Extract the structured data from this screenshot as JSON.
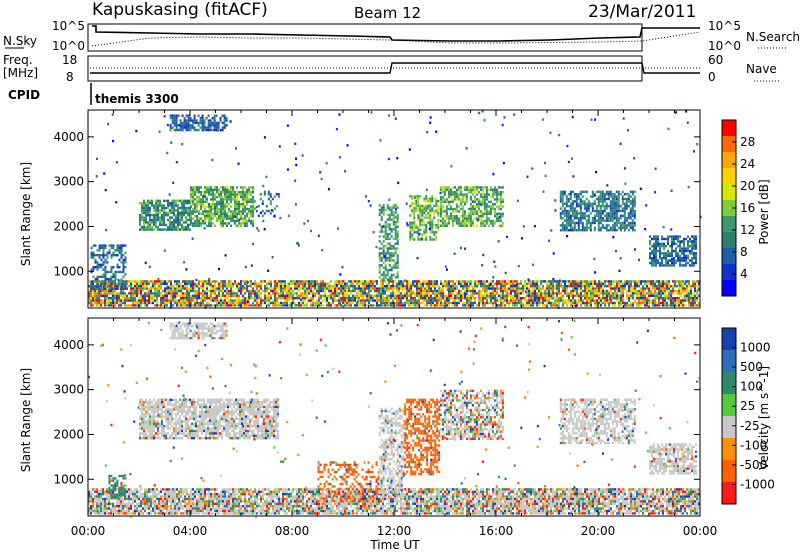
{
  "header": {
    "title": "Kapuskasing (fitACF)",
    "beam": "Beam 12",
    "date": "23/Mar/2011",
    "cpid_label": "CPID",
    "cpid_value": "themis 3300"
  },
  "panels": {
    "nsky": {
      "label": "N.Sky",
      "ticks": [
        "10^5",
        "10^0"
      ]
    },
    "nsearch": {
      "label": "N.Search",
      "ticks": [
        "10^5",
        "10^0"
      ]
    },
    "freq": {
      "label_line1": "Freq.",
      "label_line2": "[MHz]",
      "ticks": [
        "18",
        "8"
      ]
    },
    "nave": {
      "label": "Nave",
      "ticks": [
        "60",
        "0"
      ]
    }
  },
  "colorbars": {
    "power": {
      "label": "Power [dB]",
      "ticks": [
        "28",
        "24",
        "20",
        "16",
        "12",
        "8",
        "4"
      ],
      "colors": [
        "#ff0000",
        "#ff6a00",
        "#ffa500",
        "#ffd000",
        "#d8e800",
        "#7fcc3a",
        "#3a9a6e",
        "#2d7f70",
        "#1a5fa8",
        "#1030d0",
        "#0000ff"
      ]
    },
    "velocity": {
      "label": "Velocity [m s^-1]",
      "ticks": [
        "1000",
        "500",
        "100",
        "25",
        "-25",
        "-100",
        "-500",
        "-1000"
      ],
      "colors": [
        "#1a3fb0",
        "#2a6fb8",
        "#2e8a6e",
        "#58c840",
        "#c8c8c8",
        "#ff9000",
        "#ff6000",
        "#ff1a1a"
      ]
    }
  },
  "chart_data": [
    {
      "type": "heatmap",
      "name": "power",
      "ylabel": "Slant Range [km]",
      "x_ticks": [
        "00:00",
        "04:00",
        "08:00",
        "12:00",
        "16:00",
        "20:00",
        "00:00"
      ],
      "xlim": [
        0,
        24
      ],
      "y_ticks": [
        1000,
        2000,
        3000,
        4000
      ],
      "ylim": [
        180,
        4600
      ],
      "scale_label": "Power [dB]",
      "zlim": [
        0,
        30
      ],
      "regions": [
        {
          "t0": 0.0,
          "t1": 24.0,
          "r0": 200,
          "r1": 800,
          "density": 0.85,
          "z": 10
        },
        {
          "t0": 0.1,
          "t1": 1.5,
          "r0": 600,
          "r1": 1600,
          "density": 0.55,
          "z": 6
        },
        {
          "t0": 2.0,
          "t1": 4.0,
          "r0": 1900,
          "r1": 2600,
          "density": 0.75,
          "z": 9
        },
        {
          "t0": 4.0,
          "t1": 6.5,
          "r0": 2000,
          "r1": 2900,
          "density": 0.8,
          "z": 11
        },
        {
          "t0": 3.2,
          "t1": 5.5,
          "r0": 4150,
          "r1": 4500,
          "density": 0.7,
          "z": 5
        },
        {
          "t0": 6.5,
          "t1": 7.5,
          "r0": 2200,
          "r1": 2800,
          "density": 0.25,
          "z": 7
        },
        {
          "t0": 11.4,
          "t1": 12.2,
          "r0": 800,
          "r1": 2500,
          "density": 0.6,
          "z": 10
        },
        {
          "t0": 12.6,
          "t1": 13.8,
          "r0": 1700,
          "r1": 2700,
          "density": 0.65,
          "z": 12
        },
        {
          "t0": 13.8,
          "t1": 16.3,
          "r0": 2000,
          "r1": 2900,
          "density": 0.7,
          "z": 11
        },
        {
          "t0": 18.5,
          "t1": 21.5,
          "r0": 1900,
          "r1": 2800,
          "density": 0.7,
          "z": 7
        },
        {
          "t0": 22.0,
          "t1": 23.9,
          "r0": 1100,
          "r1": 1800,
          "density": 0.7,
          "z": 6
        }
      ]
    },
    {
      "type": "heatmap",
      "name": "velocity",
      "ylabel": "Slant Range [km]",
      "x_ticks": [
        "00:00",
        "04:00",
        "08:00",
        "12:00",
        "16:00",
        "20:00",
        "00:00"
      ],
      "xlabel": "Time UT",
      "xlim": [
        0,
        24
      ],
      "y_ticks": [
        1000,
        2000,
        3000,
        4000
      ],
      "ylim": [
        180,
        4600
      ],
      "scale_label": "Velocity [m s^-1]",
      "regions": [
        {
          "t0": 0.0,
          "t1": 24.0,
          "r0": 200,
          "r1": 800,
          "density": 0.85,
          "v": "mixed"
        },
        {
          "t0": 0.8,
          "t1": 1.5,
          "r0": 550,
          "r1": 1100,
          "density": 0.7,
          "v": 120
        },
        {
          "t0": 2.0,
          "t1": 7.5,
          "r0": 1900,
          "r1": 2800,
          "density": 0.8,
          "v": 0
        },
        {
          "t0": 3.2,
          "t1": 5.5,
          "r0": 4150,
          "r1": 4500,
          "density": 0.7,
          "v": 0
        },
        {
          "t0": 9.0,
          "t1": 11.5,
          "r0": 500,
          "r1": 1400,
          "density": 0.3,
          "v": -150
        },
        {
          "t0": 11.4,
          "t1": 12.4,
          "r0": 600,
          "r1": 2600,
          "density": 0.55,
          "v": 0
        },
        {
          "t0": 12.4,
          "t1": 13.8,
          "r0": 1100,
          "r1": 2800,
          "density": 0.6,
          "v": -200
        },
        {
          "t0": 13.8,
          "t1": 16.3,
          "r0": 1900,
          "r1": 3000,
          "density": 0.65,
          "v": "mixed"
        },
        {
          "t0": 18.5,
          "t1": 21.5,
          "r0": 1800,
          "r1": 2800,
          "density": 0.6,
          "v": 0
        },
        {
          "t0": 22.0,
          "t1": 23.9,
          "r0": 1100,
          "r1": 1800,
          "density": 0.7,
          "v": 0
        }
      ]
    }
  ]
}
